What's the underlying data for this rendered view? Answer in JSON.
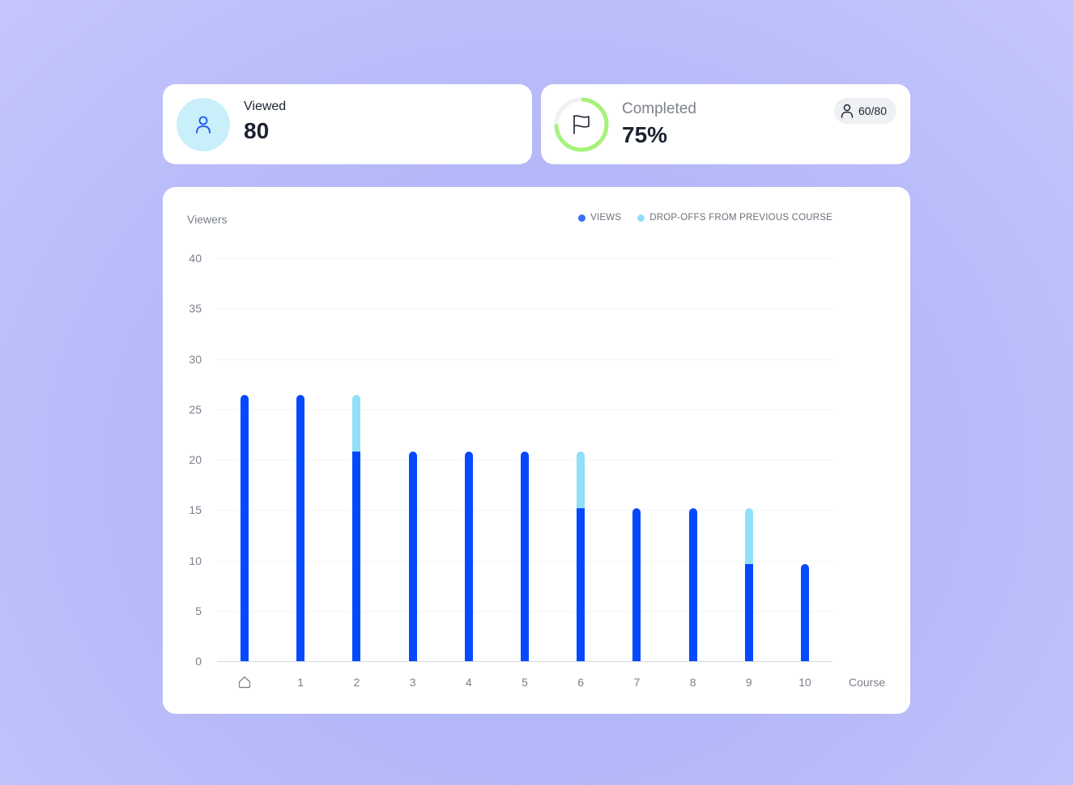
{
  "viewed_card": {
    "label": "Viewed",
    "value": "80",
    "icon": "user-icon"
  },
  "completed_card": {
    "label": "Completed",
    "value": "75%",
    "icon": "flag-icon",
    "progress_percent": 75,
    "badge": {
      "icon": "user-icon",
      "text": "60/80"
    }
  },
  "colors": {
    "views": "#0549ff",
    "dropoffs": "#8fe0f8",
    "ring": "#a6f27a",
    "ring_track": "#f0f1f3"
  },
  "chart": {
    "y_axis_title": "Viewers",
    "x_axis_title": "Course",
    "legend": [
      {
        "label": "VIEWS",
        "color": "#3d6df2"
      },
      {
        "label": "DROP-OFFS FROM PREVIOUS COURSE",
        "color": "#8fe0f8"
      }
    ],
    "y_ticks": [
      "40",
      "35",
      "30",
      "25",
      "20",
      "15",
      "10",
      "5",
      "0"
    ],
    "x_ticks": [
      "home",
      "1",
      "2",
      "3",
      "4",
      "5",
      "6",
      "7",
      "8",
      "9",
      "10"
    ]
  },
  "chart_data": {
    "type": "bar",
    "stacked": true,
    "title": "",
    "xlabel": "Course",
    "ylabel": "Viewers",
    "ylim": [
      0,
      40
    ],
    "grid": true,
    "legend_position": "top-right",
    "categories": [
      "Home",
      "1",
      "2",
      "3",
      "4",
      "5",
      "6",
      "7",
      "8",
      "9",
      "10"
    ],
    "series": [
      {
        "name": "VIEWS",
        "values": [
          26.4,
          26.4,
          20.8,
          20.8,
          20.8,
          20.8,
          15.2,
          15.2,
          15.2,
          9.6,
          9.6
        ]
      },
      {
        "name": "DROP-OFFS FROM PREVIOUS COURSE",
        "values": [
          0,
          0,
          5.6,
          0,
          0,
          0,
          5.6,
          0,
          0,
          5.6,
          0
        ]
      }
    ]
  }
}
